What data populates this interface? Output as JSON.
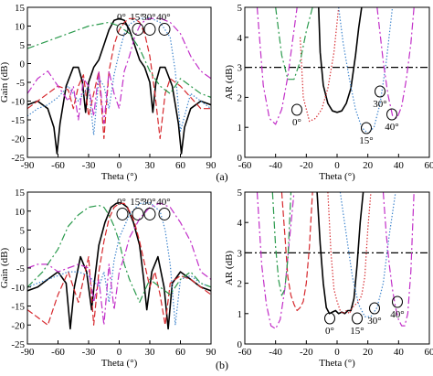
{
  "figure": {
    "labels": [
      "(a)",
      "(b)"
    ]
  },
  "colors": {
    "s0": "#000000",
    "s15": "#d6282d",
    "s30": "#3a82cc",
    "s40": "#c22fc8",
    "s_extra": "#2a9a4c"
  },
  "chart_data": [
    {
      "id": "a-gain",
      "type": "line",
      "xlabel": "Theta (°)",
      "ylabel": "Gain (dB)",
      "xlim": [
        -90,
        90
      ],
      "ylim": [
        -25,
        15
      ],
      "xticks": [
        "-90",
        "-60",
        "-30",
        "0",
        "30",
        "60",
        "90"
      ],
      "yticks": [
        "-25",
        "-20",
        "-15",
        "-10",
        "-5",
        "0",
        "5",
        "10",
        "15"
      ],
      "annotations": [
        "0°",
        "15°",
        "30°",
        "40°"
      ],
      "series": [
        {
          "id": "s0",
          "style": "solid",
          "x": [
            -90,
            -80,
            -70,
            -64,
            -61,
            -58,
            -52,
            -45,
            -40,
            -36,
            -33,
            -30,
            -25,
            -20,
            -15,
            -10,
            -5,
            0,
            5,
            10,
            15,
            20,
            25,
            30,
            33,
            36,
            40,
            45,
            52,
            58,
            61,
            64,
            70,
            80,
            90
          ],
          "y": [
            -11,
            -10,
            -12,
            -17,
            -24,
            -16,
            -6,
            -1,
            -1,
            -5,
            -13,
            -5,
            -1,
            1,
            5,
            9,
            11.5,
            12,
            11.5,
            9,
            5,
            1,
            -1,
            -5,
            -13,
            -5,
            -1,
            -1,
            -6,
            -16,
            -24,
            -17,
            -12,
            -10,
            -11
          ]
        },
        {
          "id": "s15",
          "style": "dashed",
          "x": [
            -90,
            -80,
            -70,
            -60,
            -50,
            -45,
            -40,
            -35,
            -30,
            -25,
            -20,
            -15,
            -10,
            -5,
            0,
            5,
            10,
            15,
            20,
            25,
            30,
            35,
            40,
            45,
            50,
            60,
            70,
            80,
            90
          ],
          "y": [
            -12,
            -10,
            -8,
            -6,
            -7,
            -12,
            -6,
            -3,
            -14,
            -8,
            -2,
            -20,
            -2,
            5,
            9,
            11,
            12,
            12,
            11,
            8,
            2,
            -8,
            -20,
            -8,
            -4,
            -6,
            -9,
            -12,
            -12
          ]
        },
        {
          "id": "s30",
          "style": "dotted",
          "x": [
            -90,
            -80,
            -70,
            -60,
            -50,
            -40,
            -30,
            -25,
            -20,
            -15,
            -10,
            -5,
            0,
            5,
            10,
            20,
            30,
            40,
            50,
            55,
            60,
            70,
            80,
            90
          ],
          "y": [
            -14,
            -12,
            -11,
            -9,
            -6,
            -10,
            -6,
            -19,
            -4,
            -6,
            -12,
            -3,
            3,
            8,
            10.5,
            12,
            12.2,
            11,
            7,
            -2,
            -18,
            -8,
            -10,
            -12
          ]
        },
        {
          "id": "s40",
          "style": "dashdot",
          "x": [
            -90,
            -80,
            -70,
            -60,
            -50,
            -45,
            -40,
            -35,
            -30,
            -25,
            -20,
            -15,
            -10,
            -5,
            0,
            5,
            10,
            15,
            20,
            25,
            30,
            40,
            50,
            60,
            70,
            80,
            90
          ],
          "y": [
            -8,
            -4,
            -2,
            -6,
            -10,
            -6,
            -15,
            -4,
            -6,
            -14,
            -2,
            -16,
            -2,
            -8,
            -12,
            -2,
            2,
            7,
            10,
            11.5,
            12,
            12.1,
            11,
            8,
            2,
            -2,
            -4
          ]
        },
        {
          "id": "s_extra",
          "style": "dashdot",
          "x": [
            -90,
            -70,
            -50,
            -40,
            -30,
            -20,
            -10,
            0,
            10,
            20,
            30,
            40,
            50,
            60,
            70,
            80,
            90
          ],
          "y": [
            4,
            6,
            8,
            9,
            10,
            10.5,
            11,
            10,
            8,
            4,
            -2,
            -6,
            -8,
            -4,
            -6,
            -8,
            -9
          ]
        }
      ]
    },
    {
      "id": "a-ar",
      "type": "line",
      "xlabel": "Theta (°)",
      "ylabel": "AR (dB)",
      "xlim": [
        -60,
        60
      ],
      "ylim": [
        0,
        5
      ],
      "xticks": [
        "-60",
        "-40",
        "-20",
        "0",
        "20",
        "40",
        "60"
      ],
      "yticks": [
        "0",
        "1",
        "2",
        "3",
        "4",
        "5"
      ],
      "reference_line_y": 3,
      "annotations": [
        "0°",
        "15°",
        "30°",
        "40°"
      ],
      "series": [
        {
          "id": "s0",
          "style": "solid",
          "x": [
            -12,
            -11,
            -9,
            -6,
            -3,
            0,
            3,
            6,
            9,
            12,
            14,
            16
          ],
          "y": [
            5,
            3.5,
            2.4,
            1.8,
            1.55,
            1.5,
            1.55,
            1.8,
            2.3,
            3.4,
            4.3,
            5
          ]
        },
        {
          "id": "s15",
          "style": "dotted",
          "x": [
            -24,
            -22,
            -18,
            -14,
            -10,
            -6,
            -2,
            1
          ],
          "y": [
            4,
            2,
            1.2,
            1.3,
            1.6,
            2.3,
            3.5,
            5
          ]
        },
        {
          "id": "s30",
          "style": "dotted",
          "x": [
            1,
            4,
            8,
            12,
            16,
            20,
            24,
            28,
            32,
            36
          ],
          "y": [
            5,
            3.8,
            2.6,
            1.6,
            1.0,
            0.8,
            1.0,
            1.8,
            3.2,
            5
          ]
        },
        {
          "id": "s40",
          "style": "dashdot",
          "x": [
            -52,
            -48,
            -44,
            -40,
            -36,
            -32,
            -26
          ],
          "y": [
            5,
            2.4,
            1.3,
            1.1,
            1.6,
            2.7,
            5
          ]
        },
        {
          "id": "s_extra",
          "style": "dashdot",
          "x": [
            -40,
            -36,
            -32,
            -28,
            -24,
            -20,
            -16
          ],
          "y": [
            5,
            3.4,
            2.6,
            2.6,
            3.2,
            4.2,
            5
          ]
        },
        {
          "id": "s40b",
          "style": "dashdot",
          "x": [
            26,
            30,
            33,
            36,
            39,
            42,
            45,
            48,
            50
          ],
          "y": [
            5,
            3.2,
            2.1,
            1.4,
            1.3,
            1.7,
            2.6,
            3.8,
            5
          ]
        }
      ]
    },
    {
      "id": "b-gain",
      "type": "line",
      "xlabel": "Theta (°)",
      "ylabel": "Gain (dB)",
      "xlim": [
        -90,
        90
      ],
      "ylim": [
        -25,
        15
      ],
      "xticks": [
        "-90",
        "-60",
        "-30",
        "0",
        "30",
        "60",
        "90"
      ],
      "yticks": [
        "-25",
        "-20",
        "-15",
        "-10",
        "-5",
        "0",
        "5",
        "10",
        "15"
      ],
      "annotations": [
        "0°",
        "15°",
        "30°",
        "40°"
      ],
      "series": [
        {
          "id": "s0",
          "style": "solid",
          "x": [
            -90,
            -80,
            -70,
            -60,
            -52,
            -48,
            -44,
            -38,
            -32,
            -27,
            -24,
            -20,
            -14,
            -8,
            -3,
            0,
            3,
            8,
            14,
            20,
            24,
            27,
            32,
            38,
            44,
            48,
            52,
            60,
            70,
            80,
            90
          ],
          "y": [
            -11,
            -10,
            -8,
            -6,
            -9,
            -21,
            -10,
            -2,
            -6,
            -16,
            -8,
            1,
            7,
            11,
            12,
            12.2,
            12,
            11,
            7,
            1,
            -8,
            -16,
            -6,
            -2,
            -10,
            -21,
            -9,
            -6,
            -8,
            -10,
            -11
          ]
        },
        {
          "id": "s15",
          "style": "dashed",
          "x": [
            -90,
            -80,
            -70,
            -60,
            -50,
            -40,
            -35,
            -30,
            -25,
            -20,
            -15,
            -10,
            -5,
            0,
            5,
            10,
            15,
            20,
            25,
            30,
            35,
            40,
            45,
            50,
            60,
            70,
            80,
            90
          ],
          "y": [
            -16,
            -18,
            -20,
            -12,
            -6,
            -14,
            -8,
            -2,
            -20,
            -6,
            2,
            8,
            11,
            12,
            12,
            10,
            7,
            2,
            -4,
            -10,
            -6,
            -12,
            -20,
            -9,
            -7,
            -8,
            -10,
            -12
          ]
        },
        {
          "id": "s30",
          "style": "dotted",
          "x": [
            -90,
            -80,
            -70,
            -60,
            -50,
            -40,
            -30,
            -20,
            -15,
            -10,
            -5,
            0,
            10,
            20,
            30,
            40,
            45,
            50,
            55,
            60,
            70,
            80,
            90
          ],
          "y": [
            -10,
            -9,
            -8,
            -7,
            -6,
            -6,
            -7,
            -10,
            -6,
            -14,
            -3,
            3,
            9,
            12,
            12.2,
            10,
            5,
            -4,
            -20,
            -8,
            -7,
            -9,
            -10
          ]
        },
        {
          "id": "s40",
          "style": "dashdot",
          "x": [
            -90,
            -80,
            -70,
            -60,
            -50,
            -40,
            -30,
            -25,
            -20,
            -15,
            -10,
            -5,
            0,
            5,
            10,
            20,
            30,
            40,
            50,
            60,
            70,
            75,
            80,
            90
          ],
          "y": [
            -5,
            -4,
            -4,
            -6,
            -5,
            -4,
            -5,
            -14,
            -8,
            -20,
            -4,
            -16,
            -6,
            -2,
            3,
            8,
            11,
            12.1,
            11,
            7,
            2,
            -2,
            -6,
            -8
          ]
        },
        {
          "id": "s_extra",
          "style": "dashdot",
          "x": [
            -90,
            -75,
            -60,
            -50,
            -40,
            -30,
            -20,
            -15,
            -10,
            -5,
            0,
            5,
            10,
            20,
            30,
            40,
            50,
            60,
            70,
            80,
            90
          ],
          "y": [
            -10,
            -6,
            0,
            6,
            9,
            11,
            11.5,
            11,
            9,
            6,
            2,
            -4,
            -8,
            -14,
            -8,
            -10,
            -12,
            -8,
            -6,
            -9,
            -10
          ]
        }
      ]
    },
    {
      "id": "b-ar",
      "type": "line",
      "xlabel": "Theta (°)",
      "ylabel": "AR (dB)",
      "xlim": [
        -60,
        60
      ],
      "ylim": [
        0,
        5
      ],
      "xticks": [
        "-60",
        "-40",
        "-20",
        "0",
        "20",
        "40",
        "60"
      ],
      "yticks": [
        "0",
        "1",
        "2",
        "3",
        "4",
        "5"
      ],
      "reference_line_y": 3,
      "annotations": [
        "0°",
        "15°",
        "30°",
        "40°"
      ],
      "series": [
        {
          "id": "s0",
          "style": "solid",
          "x": [
            -13,
            -11,
            -9,
            -7,
            -5,
            -3,
            -1,
            1,
            3,
            5,
            7,
            9,
            11,
            13,
            15,
            17
          ],
          "y": [
            5,
            3.3,
            2.0,
            1.2,
            1.0,
            1.05,
            1.1,
            1.0,
            1.05,
            1.0,
            1.1,
            1.1,
            1.5,
            2.6,
            4.0,
            5
          ]
        },
        {
          "id": "s15",
          "style": "dotted",
          "x": [
            -6,
            -4,
            -2,
            0,
            2,
            4,
            6,
            8,
            10,
            12,
            14,
            16,
            18,
            20,
            22
          ],
          "y": [
            5,
            3.0,
            1.8,
            1.4,
            1.1,
            1.0,
            1.1,
            1.0,
            1.2,
            1.3,
            1.4,
            1.6,
            2.2,
            3.8,
            5
          ]
        },
        {
          "id": "s30",
          "style": "dotted",
          "x": [
            2,
            6,
            10,
            14,
            18,
            22,
            26,
            30,
            34,
            38
          ],
          "y": [
            5,
            3.6,
            2.2,
            1.3,
            0.9,
            0.9,
            1.2,
            2.0,
            3.6,
            5
          ]
        },
        {
          "id": "s40",
          "style": "dashdot",
          "x": [
            -52,
            -49,
            -46,
            -43,
            -40,
            -37,
            -34,
            -31,
            -28
          ],
          "y": [
            5,
            2.6,
            1.3,
            0.6,
            0.5,
            0.8,
            1.8,
            3.4,
            5
          ]
        },
        {
          "id": "s15b",
          "style": "dashed",
          "x": [
            -36,
            -34,
            -32,
            -30,
            -28,
            -26,
            -24,
            -22,
            -20,
            -18,
            -16
          ],
          "y": [
            5,
            3.6,
            2.2,
            1.6,
            1.3,
            1.1,
            1.2,
            1.4,
            2.0,
            3.2,
            5
          ]
        },
        {
          "id": "s_extra",
          "style": "dashdot",
          "x": [
            -42,
            -40,
            -38,
            -36,
            -34,
            -32,
            -30
          ],
          "y": [
            5,
            3.2,
            2.1,
            1.6,
            1.8,
            2.8,
            5
          ]
        },
        {
          "id": "s40b",
          "style": "dashdot",
          "x": [
            30,
            32,
            34,
            36,
            38,
            40,
            42,
            44,
            46,
            48,
            50
          ],
          "y": [
            5,
            3.6,
            2.6,
            1.8,
            1.2,
            0.8,
            0.6,
            0.6,
            1.0,
            2.4,
            5
          ]
        }
      ]
    }
  ]
}
